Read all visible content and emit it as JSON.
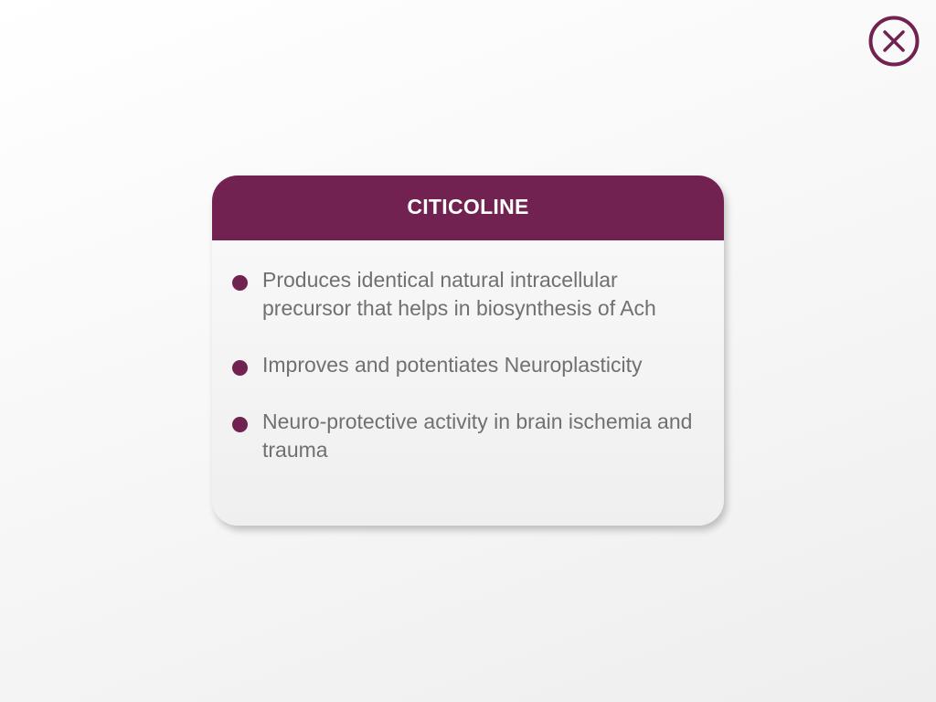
{
  "theme": {
    "accent": "#722250",
    "text_color": "#707070"
  },
  "close_button": {
    "icon": "close-circle-icon"
  },
  "card": {
    "title": "CITICOLINE",
    "points": [
      "Produces identical natural intracellular precursor that helps in biosynthesis of Ach",
      "Improves and potentiates Neuroplasticity",
      "Neuro-protective activity in brain ischemia and trauma"
    ]
  }
}
